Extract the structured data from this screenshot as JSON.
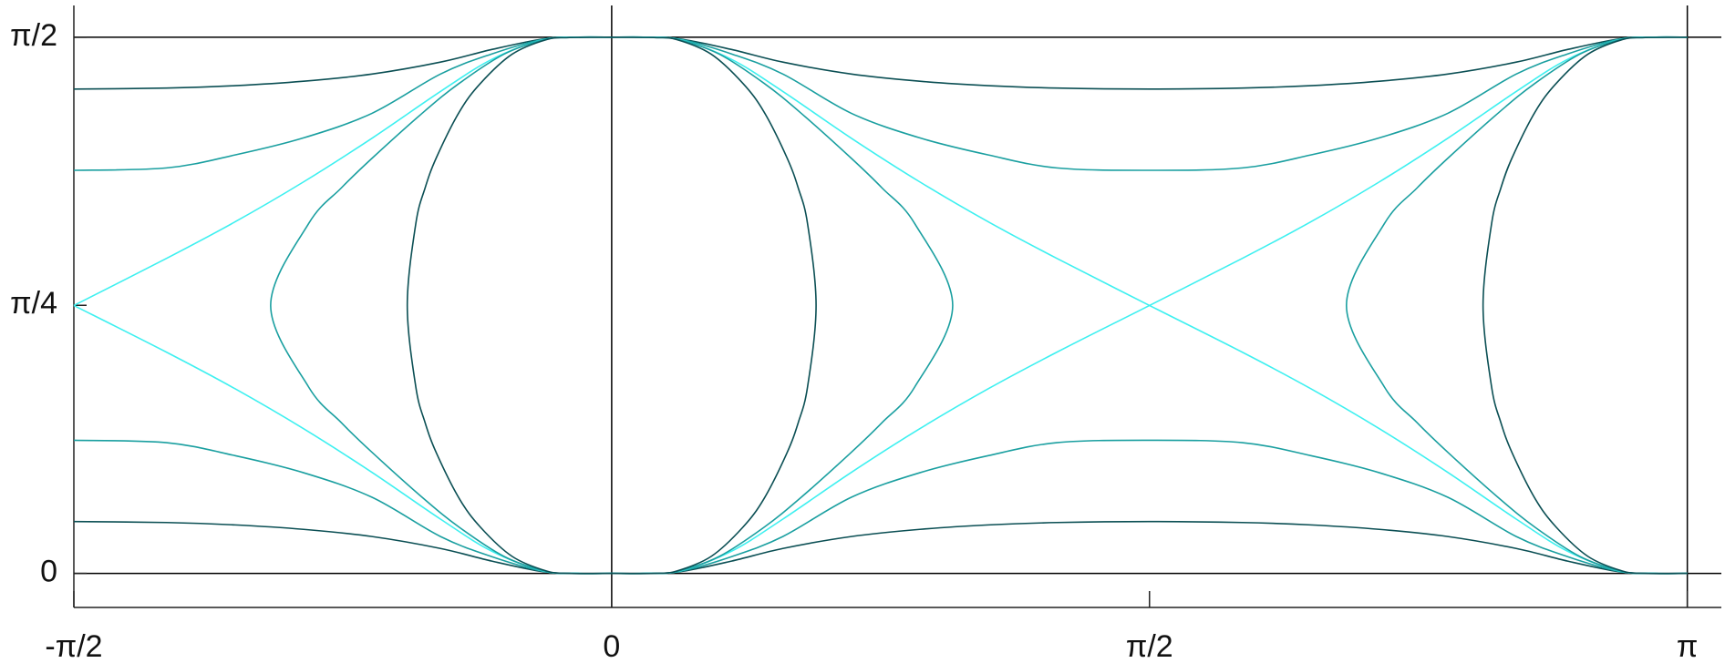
{
  "chart_data": {
    "type": "line",
    "xlim": [
      -1.5708,
      3.241
    ],
    "ylim": [
      -0.0998,
      1.664
    ],
    "xticks": [
      {
        "value": -1.5708,
        "label": "-π/2"
      },
      0,
      {
        "value": 1.5708,
        "label": "π/2"
      },
      {
        "value": 3.1416,
        "label": "π"
      }
    ],
    "yticks": [
      0,
      {
        "value": 0.7854,
        "label": "π/4"
      },
      {
        "value": 1.5708,
        "label": "π/2"
      }
    ],
    "reference_lines": {
      "x": [
        0,
        3.1416
      ],
      "y": [
        0,
        1.5708
      ],
      "color": "#000000"
    },
    "series": [
      {
        "color": "#0b4f54",
        "x": [
          -1.5708,
          -1.3,
          -1.1,
          -0.9,
          -0.7,
          -0.5,
          -0.35,
          -0.2,
          -0.1,
          0,
          null,
          -1.5708,
          -1.3,
          -1.1,
          -0.9,
          -0.7,
          -0.5,
          -0.35,
          -0.2,
          -0.1,
          0,
          null,
          0,
          0.1,
          0.2,
          0.35,
          0.5,
          0.7,
          0.9,
          1.1,
          1.3,
          1.5708,
          1.842,
          2.042,
          2.242,
          2.442,
          2.642,
          2.792,
          2.942,
          3.042,
          3.1416,
          null,
          0,
          0.1,
          0.2,
          0.35,
          0.5,
          0.7,
          0.9,
          1.1,
          1.3,
          1.5708,
          1.842,
          2.042,
          2.242,
          2.442,
          2.642,
          2.792,
          2.942,
          3.042,
          3.1416
        ],
        "y": [
          1.419,
          1.422,
          1.429,
          1.442,
          1.463,
          1.498,
          1.535,
          1.566,
          1.571,
          1.571,
          null,
          0.152,
          0.149,
          0.142,
          0.129,
          0.108,
          0.073,
          0.036,
          0.005,
          0.0,
          0,
          null,
          1.571,
          1.571,
          1.566,
          1.535,
          1.498,
          1.463,
          1.442,
          1.429,
          1.422,
          1.419,
          1.422,
          1.429,
          1.442,
          1.463,
          1.498,
          1.535,
          1.566,
          1.571,
          1.571,
          null,
          0,
          0,
          0.005,
          0.036,
          0.073,
          0.108,
          0.129,
          0.142,
          0.149,
          0.152,
          0.149,
          0.142,
          0.129,
          0.108,
          0.073,
          0.036,
          0.005,
          0,
          0
        ]
      },
      {
        "color": "#1a9fa0",
        "x": [
          -1.5708,
          -1.3,
          -1.1,
          -0.9,
          -0.7,
          -0.5,
          -0.35,
          -0.2,
          -0.1,
          0,
          null,
          -1.5708,
          -1.3,
          -1.1,
          -0.9,
          -0.7,
          -0.5,
          -0.35,
          -0.2,
          -0.1,
          0,
          null,
          0,
          0.1,
          0.2,
          0.35,
          0.5,
          0.7,
          0.9,
          1.1,
          1.3,
          1.5708,
          1.842,
          2.042,
          2.242,
          2.442,
          2.642,
          2.792,
          2.942,
          3.042,
          3.1416,
          null,
          0,
          0.1,
          0.2,
          0.35,
          0.5,
          0.7,
          0.9,
          1.1,
          1.3,
          1.5708,
          1.842,
          2.042,
          2.242,
          2.442,
          2.642,
          2.792,
          2.942,
          3.042,
          3.1416
        ],
        "y": [
          1.181,
          1.188,
          1.226,
          1.276,
          1.348,
          1.463,
          1.522,
          1.565,
          1.571,
          1.571,
          null,
          0.39,
          0.383,
          0.345,
          0.295,
          0.223,
          0.108,
          0.049,
          0.006,
          0.0,
          0,
          null,
          1.571,
          1.571,
          1.565,
          1.522,
          1.463,
          1.348,
          1.276,
          1.226,
          1.188,
          1.181,
          1.188,
          1.226,
          1.276,
          1.348,
          1.463,
          1.522,
          1.565,
          1.571,
          1.571,
          null,
          0,
          0,
          0.006,
          0.049,
          0.108,
          0.223,
          0.295,
          0.345,
          0.383,
          0.39,
          0.383,
          0.345,
          0.295,
          0.223,
          0.108,
          0.049,
          0.006,
          0,
          0
        ]
      },
      {
        "color": "#3ef0f0",
        "x": [
          -1.5708,
          -1.3,
          -1.1,
          -0.9,
          -0.7,
          -0.5,
          -0.35,
          -0.2,
          -0.1,
          0,
          null,
          -1.5708,
          -1.3,
          -1.1,
          -0.9,
          -0.7,
          -0.5,
          -0.35,
          -0.2,
          -0.1,
          0,
          null,
          0,
          0.1,
          0.2,
          0.35,
          0.5,
          0.7,
          0.9,
          1.1,
          1.3,
          1.5708,
          1.842,
          2.042,
          2.242,
          2.442,
          2.642,
          2.792,
          2.942,
          3.042,
          3.1416,
          null,
          0,
          0.1,
          0.2,
          0.35,
          0.5,
          0.7,
          0.9,
          1.1,
          1.3,
          1.5708,
          1.842,
          2.042,
          2.242,
          2.442,
          2.642,
          2.792,
          2.942,
          3.042,
          3.1416
        ],
        "y": [
          0.785,
          0.923,
          1.03,
          1.147,
          1.275,
          1.412,
          1.506,
          1.564,
          1.571,
          1.571,
          null,
          0.785,
          0.648,
          0.541,
          0.424,
          0.296,
          0.159,
          0.065,
          0.007,
          0.0,
          0,
          null,
          1.571,
          1.571,
          1.564,
          1.506,
          1.412,
          1.275,
          1.147,
          1.03,
          0.923,
          0.785,
          0.648,
          0.541,
          0.424,
          0.296,
          0.159,
          0.065,
          0.007,
          0.0,
          0,
          null,
          0,
          0,
          0.007,
          0.065,
          0.159,
          0.296,
          0.424,
          0.541,
          0.648,
          0.785,
          0.923,
          1.03,
          1.147,
          1.275,
          1.412,
          1.506,
          1.564,
          1.571,
          1.571
        ]
      },
      {
        "color": "#1a9fa0",
        "x": [
          0,
          -0.124,
          -0.196,
          -0.315,
          -0.445,
          -0.549,
          -0.698,
          -0.79,
          -0.885,
          -0.996,
          -0.885,
          -0.79,
          -0.698,
          -0.549,
          -0.445,
          -0.315,
          -0.196,
          -0.124,
          0,
          null,
          0,
          0.124,
          0.196,
          0.315,
          0.445,
          0.549,
          0.698,
          0.79,
          0.885,
          0.996,
          0.885,
          0.79,
          0.698,
          0.549,
          0.445,
          0.315,
          0.196,
          0.124,
          0,
          null,
          3.1416,
          3.018,
          2.946,
          2.827,
          2.697,
          2.593,
          2.444,
          2.352,
          2.257,
          2.146,
          2.257,
          2.352,
          2.444,
          2.593,
          2.697,
          2.827,
          2.946,
          3.018,
          3.1416
        ],
        "y": [
          1.571,
          1.57,
          1.564,
          1.521,
          1.436,
          1.352,
          1.218,
          1.129,
          1.025,
          0.785,
          0.546,
          0.442,
          0.353,
          0.219,
          0.135,
          0.05,
          0.007,
          0.0,
          0,
          null,
          1.571,
          1.57,
          1.564,
          1.521,
          1.436,
          1.352,
          1.218,
          1.129,
          1.025,
          0.785,
          0.546,
          0.442,
          0.353,
          0.219,
          0.135,
          0.05,
          0.007,
          0.0,
          0,
          null,
          1.571,
          1.57,
          1.564,
          1.521,
          1.436,
          1.352,
          1.218,
          1.129,
          1.025,
          0.785,
          0.546,
          0.442,
          0.353,
          0.219,
          0.135,
          0.05,
          0.007,
          0.0,
          0
        ]
      },
      {
        "color": "#0b4f54",
        "x": [
          0,
          -0.123,
          -0.19,
          -0.291,
          -0.383,
          -0.445,
          -0.512,
          -0.545,
          -0.572,
          -0.597,
          -0.572,
          -0.545,
          -0.512,
          -0.445,
          -0.383,
          -0.291,
          -0.19,
          -0.123,
          0,
          null,
          0,
          0.123,
          0.19,
          0.291,
          0.383,
          0.445,
          0.512,
          0.545,
          0.572,
          0.597,
          0.572,
          0.545,
          0.512,
          0.445,
          0.383,
          0.291,
          0.19,
          0.123,
          0,
          null,
          3.1416,
          3.019,
          2.952,
          2.851,
          2.759,
          2.697,
          2.63,
          2.597,
          2.57,
          2.545,
          2.57,
          2.597,
          2.63,
          2.697,
          2.759,
          2.851,
          2.952,
          3.019,
          3.1416
        ],
        "y": [
          1.571,
          1.57,
          1.564,
          1.521,
          1.436,
          1.352,
          1.218,
          1.129,
          1.025,
          0.785,
          0.546,
          0.442,
          0.353,
          0.219,
          0.135,
          0.05,
          0.007,
          0.0,
          0,
          null,
          1.571,
          1.57,
          1.564,
          1.521,
          1.436,
          1.352,
          1.218,
          1.129,
          1.025,
          0.785,
          0.546,
          0.442,
          0.353,
          0.219,
          0.135,
          0.05,
          0.007,
          0.0,
          0,
          null,
          1.571,
          1.57,
          1.564,
          1.521,
          1.436,
          1.352,
          1.218,
          1.129,
          1.025,
          0.785,
          0.546,
          0.442,
          0.353,
          0.219,
          0.135,
          0.05,
          0.007,
          0.0,
          0
        ]
      }
    ]
  }
}
